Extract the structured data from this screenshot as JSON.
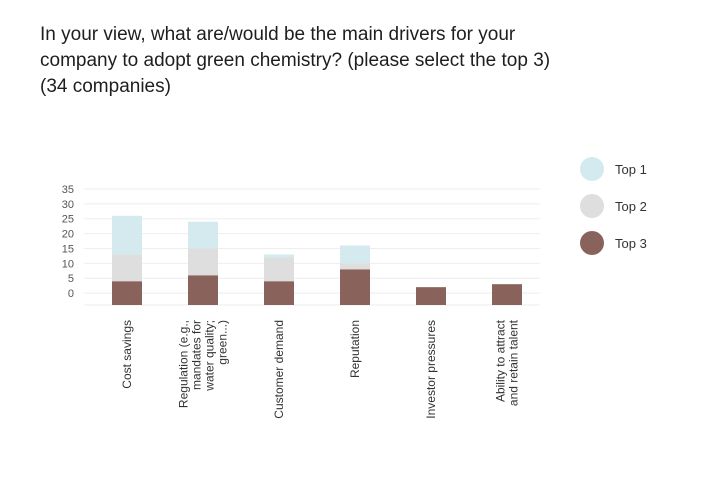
{
  "title": {
    "line1": "In your view, what are/would be the main drivers for your",
    "line2": "company to adopt green chemistry? (please select the top 3)",
    "line3": "(34 companies)"
  },
  "chart_data": {
    "type": "bar",
    "stacked": true,
    "categories": [
      [
        "Cost savings"
      ],
      [
        "Regulation (e.g.,",
        "mandates for",
        "water quality;",
        "green...)"
      ],
      [
        "Customer demand"
      ],
      [
        "Reputation"
      ],
      [
        "Investor pressures"
      ],
      [
        "Ability to attract",
        "and retain talent"
      ]
    ],
    "series": [
      {
        "name": "Top 3",
        "color": "#8a625c",
        "values": [
          4,
          6,
          4,
          8,
          2,
          3
        ]
      },
      {
        "name": "Top 2",
        "color": "#dedede",
        "values": [
          9,
          9,
          8,
          2,
          0,
          0
        ]
      },
      {
        "name": "Top 1",
        "color": "#d5eaee",
        "values": [
          13,
          9,
          1,
          6,
          0,
          0
        ]
      }
    ],
    "legend": [
      "Top 1",
      "Top 2",
      "Top 3"
    ],
    "y_ticks": [
      0,
      5,
      10,
      15,
      20,
      25,
      30,
      35
    ],
    "ylim": [
      -4,
      35
    ],
    "grid": true,
    "legend_position": "right"
  }
}
